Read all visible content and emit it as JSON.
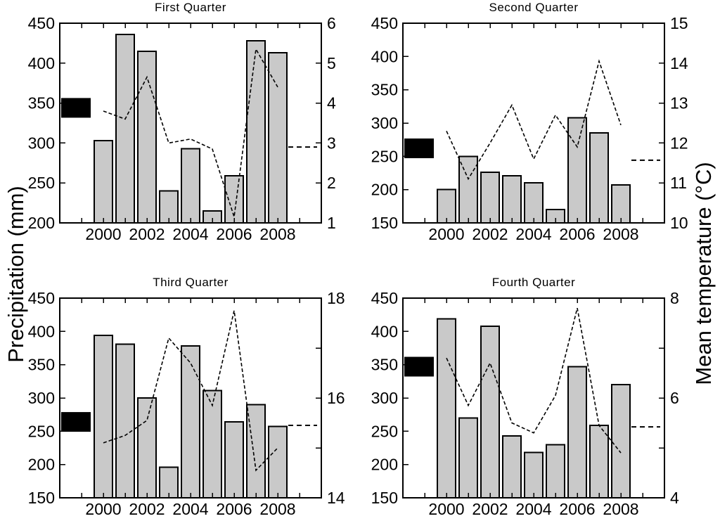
{
  "figure": {
    "ylabel_left": "Precipitation (mm)",
    "ylabel_right": "Mean temperature (°C)",
    "background": "#ffffff"
  },
  "colors": {
    "bar_fill": "#c9c9c9",
    "bar_edge": "#000000",
    "line": "#000000",
    "axis": "#000000",
    "marker": "#000000"
  },
  "chart_data": [
    {
      "type": "bar+line",
      "title": "First Quarter",
      "x": [
        2000,
        2001,
        2002,
        2003,
        2004,
        2005,
        2006,
        2007,
        2008
      ],
      "series": [
        {
          "name": "Precipitation (mm)",
          "type": "bar",
          "axis": "left",
          "values": [
            303,
            436,
            415,
            240,
            293,
            215,
            259,
            428,
            413
          ]
        },
        {
          "name": "Mean temperature (°C)",
          "type": "line",
          "axis": "right",
          "values": [
            3.8,
            3.6,
            4.65,
            3.0,
            3.1,
            2.85,
            1.15,
            5.35,
            4.4
          ]
        }
      ],
      "xlim": [
        1998,
        2010
      ],
      "x_tick_labels": [
        "2000",
        "2002",
        "2004",
        "2006",
        "2008"
      ],
      "x_tick_label_years": [
        2000,
        2002,
        2004,
        2006,
        2008
      ],
      "x_minor_ticks": [
        1999,
        2000,
        2001,
        2002,
        2003,
        2004,
        2005,
        2006,
        2007,
        2008,
        2009
      ],
      "left_ylim": [
        200,
        450
      ],
      "left_ticks": [
        200,
        250,
        300,
        350,
        400,
        450
      ],
      "right_ylim": [
        1,
        6
      ],
      "right_ticks": [
        1,
        2,
        3,
        4,
        5,
        6
      ],
      "right_tick_labels": [
        "1",
        "2",
        "3",
        "4",
        "5",
        "6"
      ],
      "annotations": {
        "mean_precip_marker_mm": 344,
        "mean_temp_dashed_c": 2.9
      }
    },
    {
      "type": "bar+line",
      "title": "Second Quarter",
      "x": [
        2000,
        2001,
        2002,
        2003,
        2004,
        2005,
        2006,
        2007,
        2008
      ],
      "series": [
        {
          "name": "Precipitation (mm)",
          "type": "bar",
          "axis": "left",
          "values": [
            200,
            250,
            226,
            221,
            210,
            170,
            308,
            285,
            207
          ]
        },
        {
          "name": "Mean temperature (°C)",
          "type": "line",
          "axis": "right",
          "values": [
            12.3,
            11.1,
            12.0,
            12.95,
            11.6,
            12.7,
            11.9,
            14.05,
            12.45
          ]
        }
      ],
      "xlim": [
        1998,
        2010
      ],
      "x_tick_labels": [
        "2000",
        "2002",
        "2004",
        "2006",
        "2008"
      ],
      "x_tick_label_years": [
        2000,
        2002,
        2004,
        2006,
        2008
      ],
      "x_minor_ticks": [
        1999,
        2000,
        2001,
        2002,
        2003,
        2004,
        2005,
        2006,
        2007,
        2008,
        2009
      ],
      "left_ylim": [
        150,
        450
      ],
      "left_ticks": [
        150,
        200,
        250,
        300,
        350,
        400,
        450
      ],
      "right_ylim": [
        10,
        15
      ],
      "right_ticks": [
        10,
        11,
        12,
        13,
        14,
        15
      ],
      "right_tick_labels": [
        "10",
        "11",
        "12",
        "13",
        "14",
        "15"
      ],
      "annotations": {
        "mean_precip_marker_mm": 262,
        "mean_temp_dashed_c": 11.57
      }
    },
    {
      "type": "bar+line",
      "title": "Third Quarter",
      "x": [
        2000,
        2001,
        2002,
        2003,
        2004,
        2005,
        2006,
        2007,
        2008
      ],
      "series": [
        {
          "name": "Precipitation (mm)",
          "type": "bar",
          "axis": "left",
          "values": [
            394,
            381,
            300,
            196,
            378,
            311,
            264,
            290,
            257
          ]
        },
        {
          "name": "Mean temperature (°C)",
          "type": "line",
          "axis": "right",
          "values": [
            15.1,
            15.25,
            15.55,
            17.2,
            16.7,
            15.85,
            17.75,
            14.55,
            15.0
          ]
        }
      ],
      "xlim": [
        1998,
        2010
      ],
      "x_tick_labels": [
        "2000",
        "2002",
        "2004",
        "2006",
        "2008"
      ],
      "x_tick_label_years": [
        2000,
        2002,
        2004,
        2006,
        2008
      ],
      "x_minor_ticks": [
        1999,
        2000,
        2001,
        2002,
        2003,
        2004,
        2005,
        2006,
        2007,
        2008,
        2009
      ],
      "left_ylim": [
        150,
        450
      ],
      "left_ticks": [
        150,
        200,
        250,
        300,
        350,
        400,
        450
      ],
      "right_ylim": [
        14,
        18
      ],
      "right_ticks": [
        14,
        15,
        16,
        17,
        18
      ],
      "right_tick_labels": [
        "14",
        "",
        "16",
        "",
        "18"
      ],
      "annotations": {
        "mean_precip_marker_mm": 264,
        "mean_temp_dashed_c": 15.45
      }
    },
    {
      "type": "bar+line",
      "title": "Fourth Quarter",
      "x": [
        2000,
        2001,
        2002,
        2003,
        2004,
        2005,
        2006,
        2007,
        2008
      ],
      "series": [
        {
          "name": "Precipitation (mm)",
          "type": "bar",
          "axis": "left",
          "values": [
            419,
            270,
            408,
            243,
            218,
            230,
            347,
            259,
            320
          ]
        },
        {
          "name": "Mean temperature (°C)",
          "type": "line",
          "axis": "right",
          "values": [
            6.8,
            5.85,
            6.7,
            5.5,
            5.3,
            6.05,
            7.8,
            5.45,
            4.9
          ]
        }
      ],
      "xlim": [
        1998,
        2010
      ],
      "x_tick_labels": [
        "2000",
        "2002",
        "2004",
        "2006",
        "2008"
      ],
      "x_tick_label_years": [
        2000,
        2002,
        2004,
        2006,
        2008
      ],
      "x_minor_ticks": [
        1999,
        2000,
        2001,
        2002,
        2003,
        2004,
        2005,
        2006,
        2007,
        2008,
        2009
      ],
      "left_ylim": [
        150,
        450
      ],
      "left_ticks": [
        150,
        200,
        250,
        300,
        350,
        400,
        450
      ],
      "right_ylim": [
        4,
        8
      ],
      "right_ticks": [
        4,
        5,
        6,
        7,
        8
      ],
      "right_tick_labels": [
        "4",
        "",
        "6",
        "",
        "8"
      ],
      "annotations": {
        "mean_precip_marker_mm": 347,
        "mean_temp_dashed_c": 5.42
      }
    }
  ]
}
